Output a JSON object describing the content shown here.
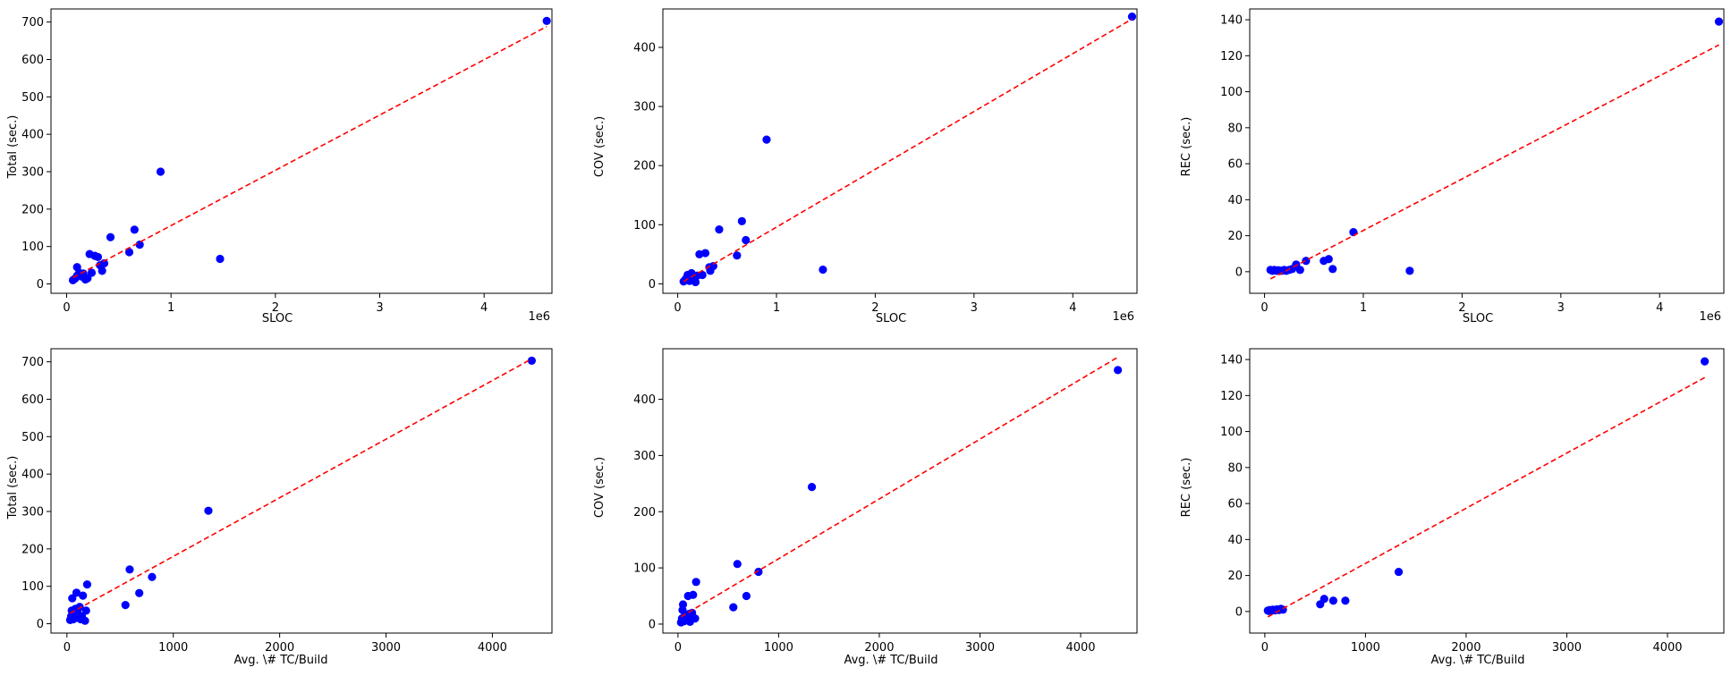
{
  "colors": {
    "points": "#0000ff",
    "fit": "#ff0000",
    "axes": "#000000"
  },
  "chart_data": [
    {
      "type": "scatter",
      "xlabel": "SLOC",
      "ylabel": "Total (sec.)",
      "x_offset_label": "1e6",
      "xlim": [
        -0.15,
        4.65
      ],
      "ylim": [
        -25,
        735
      ],
      "xticks": [
        0,
        1,
        2,
        3,
        4
      ],
      "yticks": [
        0,
        100,
        200,
        300,
        400,
        500,
        600,
        700
      ],
      "points": [
        [
          0.06,
          10
        ],
        [
          0.08,
          14
        ],
        [
          0.1,
          22
        ],
        [
          0.1,
          45
        ],
        [
          0.12,
          30
        ],
        [
          0.14,
          20
        ],
        [
          0.16,
          28
        ],
        [
          0.18,
          12
        ],
        [
          0.2,
          15
        ],
        [
          0.22,
          80
        ],
        [
          0.24,
          30
        ],
        [
          0.27,
          75
        ],
        [
          0.3,
          72
        ],
        [
          0.32,
          50
        ],
        [
          0.34,
          35
        ],
        [
          0.36,
          55
        ],
        [
          0.42,
          125
        ],
        [
          0.6,
          85
        ],
        [
          0.65,
          145
        ],
        [
          0.7,
          105
        ],
        [
          0.9,
          300
        ],
        [
          1.47,
          67
        ],
        [
          4.6,
          703
        ]
      ],
      "fit_line": [
        [
          0.06,
          17
        ],
        [
          4.6,
          688
        ]
      ]
    },
    {
      "type": "scatter",
      "xlabel": "SLOC",
      "ylabel": "COV (sec.)",
      "x_offset_label": "1e6",
      "xlim": [
        -0.15,
        4.65
      ],
      "ylim": [
        -16,
        465
      ],
      "xticks": [
        0,
        1,
        2,
        3,
        4
      ],
      "yticks": [
        0,
        100,
        200,
        300,
        400
      ],
      "points": [
        [
          0.06,
          4
        ],
        [
          0.08,
          8
        ],
        [
          0.1,
          15
        ],
        [
          0.12,
          5
        ],
        [
          0.14,
          18
        ],
        [
          0.16,
          12
        ],
        [
          0.18,
          3
        ],
        [
          0.2,
          14
        ],
        [
          0.22,
          50
        ],
        [
          0.25,
          15
        ],
        [
          0.28,
          52
        ],
        [
          0.32,
          28
        ],
        [
          0.33,
          22
        ],
        [
          0.36,
          30
        ],
        [
          0.42,
          92
        ],
        [
          0.6,
          48
        ],
        [
          0.65,
          106
        ],
        [
          0.69,
          74
        ],
        [
          0.9,
          244
        ],
        [
          1.47,
          24
        ],
        [
          4.6,
          452
        ]
      ],
      "fit_line": [
        [
          0.06,
          4
        ],
        [
          4.6,
          448
        ]
      ]
    },
    {
      "type": "scatter",
      "xlabel": "SLOC",
      "ylabel": "REC (sec.)",
      "x_offset_label": "1e6",
      "xlim": [
        -0.15,
        4.65
      ],
      "ylim": [
        -12,
        146
      ],
      "xticks": [
        0,
        1,
        2,
        3,
        4
      ],
      "yticks": [
        0,
        20,
        40,
        60,
        80,
        100,
        120,
        140
      ],
      "points": [
        [
          0.06,
          1
        ],
        [
          0.08,
          0.5
        ],
        [
          0.1,
          1
        ],
        [
          0.12,
          0.5
        ],
        [
          0.14,
          0.8
        ],
        [
          0.16,
          0.5
        ],
        [
          0.18,
          0.6
        ],
        [
          0.2,
          1
        ],
        [
          0.22,
          0.5
        ],
        [
          0.25,
          1
        ],
        [
          0.28,
          1.5
        ],
        [
          0.32,
          4
        ],
        [
          0.36,
          1
        ],
        [
          0.42,
          6
        ],
        [
          0.6,
          6
        ],
        [
          0.65,
          7
        ],
        [
          0.69,
          1.5
        ],
        [
          0.9,
          22
        ],
        [
          1.47,
          0.5
        ],
        [
          4.6,
          139
        ]
      ],
      "fit_line": [
        [
          0.06,
          -4
        ],
        [
          4.6,
          126
        ]
      ]
    },
    {
      "type": "scatter",
      "xlabel": "Avg. \\# TC/Build",
      "ylabel": "Total (sec.)",
      "xlim": [
        -150,
        4560
      ],
      "ylim": [
        -25,
        735
      ],
      "xticks": [
        0,
        1000,
        2000,
        3000,
        4000
      ],
      "yticks": [
        0,
        100,
        200,
        300,
        400,
        500,
        600,
        700
      ],
      "points": [
        [
          30,
          10
        ],
        [
          40,
          20
        ],
        [
          45,
          35
        ],
        [
          50,
          68
        ],
        [
          60,
          12
        ],
        [
          70,
          25
        ],
        [
          80,
          40
        ],
        [
          90,
          83
        ],
        [
          100,
          30
        ],
        [
          110,
          15
        ],
        [
          120,
          45
        ],
        [
          130,
          12
        ],
        [
          140,
          20
        ],
        [
          150,
          75
        ],
        [
          170,
          8
        ],
        [
          180,
          35
        ],
        [
          190,
          105
        ],
        [
          550,
          50
        ],
        [
          590,
          145
        ],
        [
          680,
          82
        ],
        [
          800,
          125
        ],
        [
          1330,
          302
        ],
        [
          4370,
          703
        ]
      ],
      "fit_line": [
        [
          30,
          28
        ],
        [
          4370,
          708
        ]
      ]
    },
    {
      "type": "scatter",
      "xlabel": "Avg. \\# TC/Build",
      "ylabel": "COV (sec.)",
      "xlim": [
        -150,
        4560
      ],
      "ylim": [
        -16,
        490
      ],
      "xticks": [
        0,
        1000,
        2000,
        3000,
        4000
      ],
      "yticks": [
        0,
        100,
        200,
        300,
        400
      ],
      "points": [
        [
          30,
          3
        ],
        [
          40,
          10
        ],
        [
          45,
          25
        ],
        [
          50,
          35
        ],
        [
          60,
          5
        ],
        [
          70,
          15
        ],
        [
          80,
          8
        ],
        [
          100,
          50
        ],
        [
          110,
          18
        ],
        [
          120,
          4
        ],
        [
          130,
          12
        ],
        [
          140,
          20
        ],
        [
          150,
          52
        ],
        [
          170,
          10
        ],
        [
          180,
          75
        ],
        [
          550,
          30
        ],
        [
          590,
          107
        ],
        [
          680,
          50
        ],
        [
          800,
          93
        ],
        [
          1330,
          244
        ],
        [
          4370,
          452
        ]
      ],
      "fit_line": [
        [
          30,
          13
        ],
        [
          4370,
          475
        ]
      ]
    },
    {
      "type": "scatter",
      "xlabel": "Avg. \\# TC/Build",
      "ylabel": "REC (sec.)",
      "xlim": [
        -150,
        4560
      ],
      "ylim": [
        -12,
        146
      ],
      "xticks": [
        0,
        1000,
        2000,
        3000,
        4000
      ],
      "yticks": [
        0,
        20,
        40,
        60,
        80,
        100,
        120,
        140
      ],
      "points": [
        [
          30,
          0.5
        ],
        [
          40,
          0.3
        ],
        [
          50,
          0.8
        ],
        [
          60,
          0.4
        ],
        [
          80,
          1
        ],
        [
          100,
          0.6
        ],
        [
          120,
          1.2
        ],
        [
          140,
          0.8
        ],
        [
          160,
          1.5
        ],
        [
          180,
          1
        ],
        [
          550,
          4
        ],
        [
          590,
          7
        ],
        [
          680,
          6
        ],
        [
          800,
          6
        ],
        [
          1330,
          22
        ],
        [
          4370,
          139
        ]
      ],
      "fit_line": [
        [
          30,
          -3
        ],
        [
          4370,
          130
        ]
      ]
    }
  ]
}
